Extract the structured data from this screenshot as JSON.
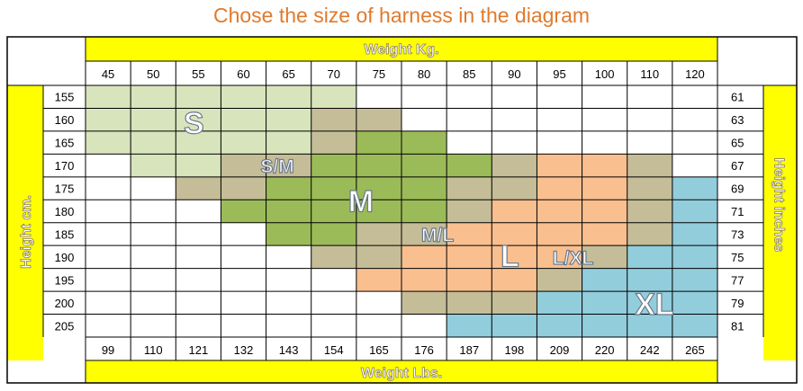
{
  "title": "Chose the size of harness in the diagram",
  "top_axis_label": "Weight Kg.",
  "bottom_axis_label": "Weight Lbs.",
  "left_axis_label": "Height cm.",
  "right_axis_label": "Height inches",
  "weights_kg": [
    "45",
    "50",
    "55",
    "60",
    "65",
    "70",
    "75",
    "80",
    "85",
    "90",
    "95",
    "100",
    "110",
    "120"
  ],
  "weights_lbs": [
    "99",
    "110",
    "121",
    "132",
    "143",
    "154",
    "165",
    "176",
    "187",
    "198",
    "209",
    "220",
    "242",
    "265"
  ],
  "heights_cm": [
    "155",
    "160",
    "165",
    "170",
    "175",
    "180",
    "185",
    "190",
    "195",
    "200",
    "205"
  ],
  "heights_in": [
    "61",
    "63",
    "65",
    "67",
    "69",
    "71",
    "73",
    "75",
    "77",
    "79",
    "81"
  ],
  "colors": {
    "band": "#ffff00",
    "S": "#d8e4bc",
    "SM": "#c4bd97",
    "M": "#9bbb59",
    "ML": "#c4bd97",
    "L": "#fabf8f",
    "LXL": "#c4bd97",
    "XL": "#92cddc",
    "white": "#ffffff"
  },
  "size_grid": [
    "SSSSSS........",
    "SSSSSDD.......",
    "SSSSSDMM......",
    ".SSDDMMMMDLLD.",
    "..DDMMMMDDLLDX",
    "...MMMMMDLLLDX",
    "....MMDDLLLLDX",
    ".....DDLLLLDXX",
    "......LLLLDXXX",
    ".......DDDXXXX",
    "........XXXXXX"
  ],
  "size_labels": [
    {
      "text": "S",
      "col": 2.4,
      "row": 1.6
    },
    {
      "text": "S/M",
      "col": 4.25,
      "row": 3.5
    },
    {
      "text": "M",
      "col": 6.1,
      "row": 5.0
    },
    {
      "text": "M/L",
      "col": 7.8,
      "row": 6.5
    },
    {
      "text": "L",
      "col": 9.4,
      "row": 7.4
    },
    {
      "text": "L/XL",
      "col": 10.8,
      "row": 7.5
    },
    {
      "text": "XL",
      "col": 12.6,
      "row": 9.5
    }
  ]
}
